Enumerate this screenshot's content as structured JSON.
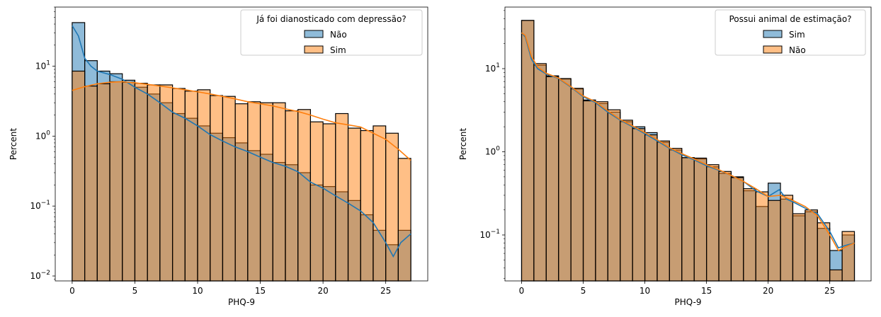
{
  "chart_data": [
    {
      "type": "bar",
      "subtype": "overlaid-histogram-with-kde",
      "xlabel": "PHQ-9",
      "ylabel": "Percent",
      "yscale": "log",
      "xlim": [
        -1.35,
        28.35
      ],
      "ylim": [
        0.0085,
        70
      ],
      "xticks": [
        0,
        5,
        10,
        15,
        20,
        25
      ],
      "yticks": [
        {
          "value": 0.01,
          "base": "10",
          "exp": "−2"
        },
        {
          "value": 0.1,
          "base": "10",
          "exp": "−1"
        },
        {
          "value": 1,
          "base": "10",
          "exp": "0"
        },
        {
          "value": 10,
          "base": "10",
          "exp": "1"
        }
      ],
      "bin_width": 1,
      "bin_starts": [
        0,
        1,
        2,
        3,
        4,
        5,
        6,
        7,
        8,
        9,
        10,
        11,
        12,
        13,
        14,
        15,
        16,
        17,
        18,
        19,
        20,
        21,
        22,
        23,
        24,
        25,
        26
      ],
      "legend": {
        "title": "Já foi dianosticado com depressão?",
        "position": "upper right"
      },
      "series": [
        {
          "name": "Não",
          "color": "#1f77b4",
          "values": [
            42,
            12,
            8.5,
            7.8,
            6.3,
            5.0,
            4.0,
            3.0,
            2.1,
            1.8,
            1.4,
            1.1,
            0.95,
            0.8,
            0.62,
            0.55,
            0.42,
            0.39,
            0.3,
            0.2,
            0.19,
            0.16,
            0.12,
            0.075,
            0.045,
            0.028,
            0.045
          ],
          "kde": [
            [
              0,
              38
            ],
            [
              0.5,
              27
            ],
            [
              1,
              13
            ],
            [
              1.5,
              10
            ],
            [
              2,
              8.5
            ],
            [
              3,
              7.6
            ],
            [
              4,
              6.5
            ],
            [
              5,
              5.0
            ],
            [
              6,
              4.0
            ],
            [
              7,
              3.0
            ],
            [
              8,
              2.2
            ],
            [
              9,
              1.8
            ],
            [
              10,
              1.4
            ],
            [
              11,
              1.05
            ],
            [
              12,
              0.85
            ],
            [
              13,
              0.7
            ],
            [
              14,
              0.6
            ],
            [
              15,
              0.5
            ],
            [
              16,
              0.42
            ],
            [
              17,
              0.37
            ],
            [
              18,
              0.31
            ],
            [
              19,
              0.22
            ],
            [
              20,
              0.18
            ],
            [
              21,
              0.14
            ],
            [
              22,
              0.11
            ],
            [
              23,
              0.085
            ],
            [
              24,
              0.058
            ],
            [
              25,
              0.03
            ],
            [
              25.6,
              0.019
            ],
            [
              26.2,
              0.03
            ],
            [
              27,
              0.04
            ]
          ]
        },
        {
          "name": "Sim",
          "color": "#ff7f0e",
          "values": [
            8.5,
            5.2,
            5.6,
            6.0,
            5.9,
            5.7,
            5.4,
            5.4,
            4.8,
            4.4,
            4.6,
            3.8,
            3.7,
            2.9,
            3.1,
            3.0,
            3.0,
            2.3,
            2.4,
            1.6,
            1.5,
            2.1,
            1.3,
            1.2,
            1.4,
            1.1,
            0.48
          ],
          "kde": [
            [
              0,
              4.5
            ],
            [
              1,
              5.1
            ],
            [
              2,
              5.6
            ],
            [
              3,
              5.9
            ],
            [
              4,
              6.0
            ],
            [
              5,
              5.8
            ],
            [
              6,
              5.5
            ],
            [
              7,
              5.2
            ],
            [
              8,
              4.9
            ],
            [
              9,
              4.6
            ],
            [
              10,
              4.3
            ],
            [
              11,
              4.0
            ],
            [
              12,
              3.7
            ],
            [
              13,
              3.4
            ],
            [
              14,
              3.1
            ],
            [
              15,
              2.9
            ],
            [
              16,
              2.7
            ],
            [
              17,
              2.45
            ],
            [
              18,
              2.25
            ],
            [
              19,
              2.0
            ],
            [
              20,
              1.75
            ],
            [
              21,
              1.55
            ],
            [
              22,
              1.45
            ],
            [
              23,
              1.35
            ],
            [
              24,
              1.1
            ],
            [
              25,
              0.9
            ],
            [
              26,
              0.65
            ],
            [
              27,
              0.45
            ]
          ]
        }
      ]
    },
    {
      "type": "bar",
      "subtype": "overlaid-histogram-with-kde",
      "xlabel": "PHQ-9",
      "ylabel": "Percent",
      "yscale": "log",
      "xlim": [
        -1.35,
        28.35
      ],
      "ylim": [
        0.028,
        55
      ],
      "xticks": [
        0,
        5,
        10,
        15,
        20,
        25
      ],
      "yticks": [
        {
          "value": 0.1,
          "base": "10",
          "exp": "−1"
        },
        {
          "value": 1,
          "base": "10",
          "exp": "0"
        },
        {
          "value": 10,
          "base": "10",
          "exp": "1"
        }
      ],
      "bin_width": 1,
      "bin_starts": [
        0,
        1,
        2,
        3,
        4,
        5,
        6,
        7,
        8,
        9,
        10,
        11,
        12,
        13,
        14,
        15,
        16,
        17,
        18,
        19,
        20,
        21,
        22,
        23,
        24,
        25,
        26
      ],
      "legend": {
        "title": "Possui animal de estimação?",
        "position": "upper right"
      },
      "series": [
        {
          "name": "Sim",
          "color": "#1f77b4",
          "values": [
            38,
            11,
            8.2,
            7.5,
            5.7,
            4.2,
            3.8,
            3.0,
            2.3,
            2.0,
            1.7,
            1.3,
            1.05,
            0.85,
            0.82,
            0.66,
            0.55,
            0.5,
            0.34,
            0.22,
            0.42,
            0.27,
            0.17,
            0.19,
            0.12,
            0.065,
            0.1
          ],
          "kde": [
            [
              0,
              27
            ],
            [
              0.3,
              24
            ],
            [
              0.8,
              13
            ],
            [
              1.3,
              10
            ],
            [
              2,
              8.6
            ],
            [
              3,
              7.6
            ],
            [
              4,
              6.0
            ],
            [
              5,
              4.6
            ],
            [
              6,
              3.9
            ],
            [
              7,
              3.0
            ],
            [
              8,
              2.4
            ],
            [
              9,
              2.0
            ],
            [
              10,
              1.65
            ],
            [
              11,
              1.35
            ],
            [
              12,
              1.1
            ],
            [
              13,
              0.92
            ],
            [
              14,
              0.8
            ],
            [
              15,
              0.68
            ],
            [
              16,
              0.6
            ],
            [
              17,
              0.52
            ],
            [
              18,
              0.44
            ],
            [
              19,
              0.34
            ],
            [
              20,
              0.29
            ],
            [
              20.9,
              0.35
            ],
            [
              21.5,
              0.27
            ],
            [
              22,
              0.25
            ],
            [
              23,
              0.21
            ],
            [
              24,
              0.18
            ],
            [
              25,
              0.11
            ],
            [
              25.7,
              0.07
            ],
            [
              26.3,
              0.075
            ],
            [
              27,
              0.08
            ]
          ]
        },
        {
          "name": "Não",
          "color": "#ff7f0e",
          "values": [
            38,
            11.5,
            8.0,
            7.6,
            5.8,
            4.1,
            4.0,
            3.2,
            2.4,
            1.9,
            1.6,
            1.35,
            1.1,
            0.85,
            0.84,
            0.7,
            0.58,
            0.49,
            0.36,
            0.33,
            0.26,
            0.3,
            0.18,
            0.2,
            0.14,
            0.038,
            0.11
          ],
          "kde": [
            [
              0,
              27
            ],
            [
              0.3,
              25
            ],
            [
              0.8,
              14
            ],
            [
              1.3,
              10.5
            ],
            [
              2,
              8.8
            ],
            [
              3,
              7.7
            ],
            [
              4,
              6.1
            ],
            [
              5,
              4.7
            ],
            [
              6,
              4.0
            ],
            [
              7,
              3.1
            ],
            [
              8,
              2.45
            ],
            [
              9,
              2.05
            ],
            [
              10,
              1.7
            ],
            [
              11,
              1.4
            ],
            [
              12,
              1.12
            ],
            [
              13,
              0.95
            ],
            [
              14,
              0.82
            ],
            [
              15,
              0.7
            ],
            [
              16,
              0.61
            ],
            [
              17,
              0.52
            ],
            [
              18,
              0.44
            ],
            [
              19,
              0.36
            ],
            [
              20,
              0.29
            ],
            [
              21,
              0.3
            ],
            [
              22,
              0.26
            ],
            [
              23,
              0.22
            ],
            [
              24,
              0.17
            ],
            [
              25,
              0.1
            ],
            [
              25.7,
              0.065
            ],
            [
              26.3,
              0.072
            ],
            [
              27,
              0.08
            ]
          ]
        }
      ]
    }
  ]
}
